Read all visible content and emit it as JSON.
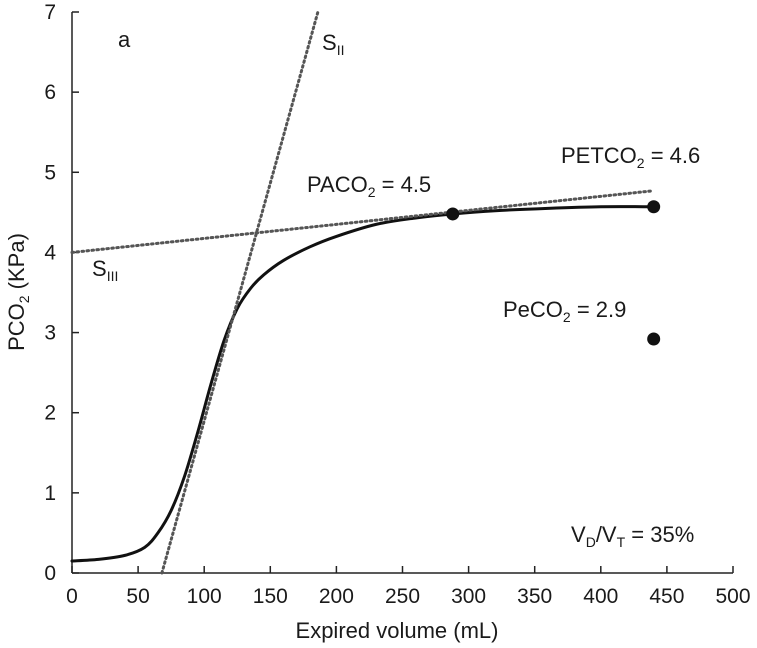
{
  "chart_data": {
    "type": "line",
    "panel_label": "a",
    "xlabel": "Expired volume (mL)",
    "ylabel": {
      "main": "PCO",
      "sub": "2",
      "tail": " (KPa)"
    },
    "xlim": [
      0,
      500
    ],
    "ylim": [
      0,
      7
    ],
    "x_ticks": [
      0,
      50,
      100,
      150,
      200,
      250,
      300,
      350,
      400,
      450,
      500
    ],
    "y_ticks": [
      0,
      1,
      2,
      3,
      4,
      5,
      6,
      7
    ],
    "grid": false,
    "series": [
      {
        "style": "solid",
        "color": "#111111",
        "x": [
          0,
          20,
          40,
          55,
          65,
          75,
          85,
          95,
          105,
          115,
          125,
          135,
          145,
          160,
          180,
          200,
          230,
          260,
          288,
          320,
          360,
          400,
          440
        ],
        "y": [
          0.15,
          0.17,
          0.22,
          0.32,
          0.5,
          0.78,
          1.2,
          1.75,
          2.35,
          2.9,
          3.3,
          3.55,
          3.72,
          3.9,
          4.07,
          4.2,
          4.35,
          4.43,
          4.48,
          4.52,
          4.55,
          4.57,
          4.57
        ]
      },
      {
        "style": "dotted",
        "color": "#555555",
        "label": {
          "main": "S",
          "sub": "II"
        },
        "x": [
          68,
          186
        ],
        "y": [
          0,
          7
        ]
      },
      {
        "style": "dotted",
        "color": "#555555",
        "label": {
          "main": "S",
          "sub": "III"
        },
        "x": [
          0,
          440
        ],
        "y": [
          4.0,
          4.77
        ]
      }
    ],
    "markers": [
      {
        "name": "PACO2",
        "x": 288,
        "y": 4.48
      },
      {
        "name": "PETCO2",
        "x": 440,
        "y": 4.57
      },
      {
        "name": "PeCO2",
        "x": 440,
        "y": 2.92
      }
    ],
    "annotations": {
      "paco2": {
        "main": "PACO",
        "sub": "2",
        "tail": " = 4.5"
      },
      "petco2": {
        "main": "PETCO",
        "sub": "2",
        "tail": " = 4.6"
      },
      "peco2": {
        "main": "PeCO",
        "sub": "2",
        "tail": " = 2.9"
      },
      "vdvt": {
        "a": "V",
        "a_sub": "D",
        "mid": "/V",
        "b_sub": "T",
        "tail": " = 35%"
      }
    }
  }
}
